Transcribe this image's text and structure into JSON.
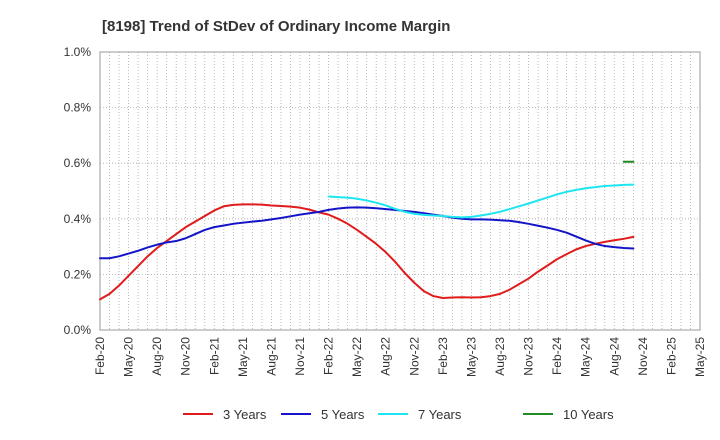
{
  "chart_data": {
    "type": "line",
    "title": "[8198]  Trend of StDev of Ordinary Income Margin",
    "xlabel": "",
    "ylabel": "",
    "x_ticks": [
      "Feb-20",
      "May-20",
      "Aug-20",
      "Nov-20",
      "Feb-21",
      "May-21",
      "Aug-21",
      "Nov-21",
      "Feb-22",
      "May-22",
      "Aug-22",
      "Nov-22",
      "Feb-23",
      "May-23",
      "Aug-23",
      "Nov-23",
      "Feb-24",
      "May-24",
      "Aug-24",
      "Nov-24",
      "Feb-25",
      "May-25"
    ],
    "y_ticks": [
      "0.0%",
      "0.2%",
      "0.4%",
      "0.6%",
      "0.8%",
      "1.0%"
    ],
    "ylim": [
      0,
      1.0
    ],
    "y_unit": "%",
    "grid": true,
    "legend_position": "bottom",
    "series": [
      {
        "name": "3 Years",
        "color": "#e01b1b",
        "points": [
          [
            "Feb-20",
            0.11
          ],
          [
            "Mar-20",
            0.13
          ],
          [
            "Apr-20",
            0.16
          ],
          [
            "May-20",
            0.195
          ],
          [
            "Jun-20",
            0.23
          ],
          [
            "Jul-20",
            0.265
          ],
          [
            "Aug-20",
            0.295
          ],
          [
            "Sep-20",
            0.32
          ],
          [
            "Oct-20",
            0.345
          ],
          [
            "Nov-20",
            0.37
          ],
          [
            "Dec-20",
            0.39
          ],
          [
            "Jan-21",
            0.41
          ],
          [
            "Feb-21",
            0.43
          ],
          [
            "Mar-21",
            0.445
          ],
          [
            "Apr-21",
            0.45
          ],
          [
            "May-21",
            0.452
          ],
          [
            "Jun-21",
            0.452
          ],
          [
            "Jul-21",
            0.451
          ],
          [
            "Aug-21",
            0.448
          ],
          [
            "Sep-21",
            0.446
          ],
          [
            "Oct-21",
            0.444
          ],
          [
            "Nov-21",
            0.44
          ],
          [
            "Dec-21",
            0.433
          ],
          [
            "Jan-22",
            0.423
          ],
          [
            "Feb-22",
            0.415
          ],
          [
            "Mar-22",
            0.4
          ],
          [
            "Apr-22",
            0.382
          ],
          [
            "May-22",
            0.36
          ],
          [
            "Jun-22",
            0.335
          ],
          [
            "Jul-22",
            0.31
          ],
          [
            "Aug-22",
            0.28
          ],
          [
            "Sep-22",
            0.245
          ],
          [
            "Oct-22",
            0.205
          ],
          [
            "Nov-22",
            0.17
          ],
          [
            "Dec-22",
            0.14
          ],
          [
            "Jan-23",
            0.122
          ],
          [
            "Feb-23",
            0.115
          ],
          [
            "Mar-23",
            0.117
          ],
          [
            "Apr-23",
            0.118
          ],
          [
            "May-23",
            0.117
          ],
          [
            "Jun-23",
            0.118
          ],
          [
            "Jul-23",
            0.122
          ],
          [
            "Aug-23",
            0.13
          ],
          [
            "Sep-23",
            0.145
          ],
          [
            "Oct-23",
            0.165
          ],
          [
            "Nov-23",
            0.185
          ],
          [
            "Dec-23",
            0.21
          ],
          [
            "Jan-24",
            0.232
          ],
          [
            "Feb-24",
            0.255
          ],
          [
            "Mar-24",
            0.273
          ],
          [
            "Apr-24",
            0.29
          ],
          [
            "May-24",
            0.302
          ],
          [
            "Jun-24",
            0.31
          ],
          [
            "Jul-24",
            0.317
          ],
          [
            "Aug-24",
            0.323
          ],
          [
            "Sep-24",
            0.328
          ],
          [
            "Oct-24",
            0.335
          ]
        ]
      },
      {
        "name": "5 Years",
        "color": "#1414c8",
        "points": [
          [
            "Feb-20",
            0.258
          ],
          [
            "Mar-20",
            0.258
          ],
          [
            "Apr-20",
            0.265
          ],
          [
            "May-20",
            0.275
          ],
          [
            "Jun-20",
            0.285
          ],
          [
            "Jul-20",
            0.297
          ],
          [
            "Aug-20",
            0.307
          ],
          [
            "Sep-20",
            0.315
          ],
          [
            "Oct-20",
            0.32
          ],
          [
            "Nov-20",
            0.33
          ],
          [
            "Dec-20",
            0.345
          ],
          [
            "Jan-21",
            0.36
          ],
          [
            "Feb-21",
            0.37
          ],
          [
            "Mar-21",
            0.376
          ],
          [
            "Apr-21",
            0.382
          ],
          [
            "May-21",
            0.386
          ],
          [
            "Jun-21",
            0.39
          ],
          [
            "Jul-21",
            0.393
          ],
          [
            "Aug-21",
            0.398
          ],
          [
            "Sep-21",
            0.403
          ],
          [
            "Oct-21",
            0.409
          ],
          [
            "Nov-21",
            0.415
          ],
          [
            "Dec-21",
            0.42
          ],
          [
            "Jan-22",
            0.425
          ],
          [
            "Feb-22",
            0.432
          ],
          [
            "Mar-22",
            0.437
          ],
          [
            "Apr-22",
            0.44
          ],
          [
            "May-22",
            0.441
          ],
          [
            "Jun-22",
            0.44
          ],
          [
            "Jul-22",
            0.438
          ],
          [
            "Aug-22",
            0.435
          ],
          [
            "Sep-22",
            0.432
          ],
          [
            "Oct-22",
            0.428
          ],
          [
            "Nov-22",
            0.425
          ],
          [
            "Dec-22",
            0.42
          ],
          [
            "Jan-23",
            0.415
          ],
          [
            "Feb-23",
            0.41
          ],
          [
            "Mar-23",
            0.404
          ],
          [
            "Apr-23",
            0.4
          ],
          [
            "May-23",
            0.398
          ],
          [
            "Jun-23",
            0.398
          ],
          [
            "Jul-23",
            0.397
          ],
          [
            "Aug-23",
            0.395
          ],
          [
            "Sep-23",
            0.393
          ],
          [
            "Oct-23",
            0.388
          ],
          [
            "Nov-23",
            0.382
          ],
          [
            "Dec-23",
            0.375
          ],
          [
            "Jan-24",
            0.368
          ],
          [
            "Feb-24",
            0.36
          ],
          [
            "Mar-24",
            0.35
          ],
          [
            "Apr-24",
            0.336
          ],
          [
            "May-24",
            0.322
          ],
          [
            "Jun-24",
            0.31
          ],
          [
            "Jul-24",
            0.302
          ],
          [
            "Aug-24",
            0.298
          ],
          [
            "Sep-24",
            0.295
          ],
          [
            "Oct-24",
            0.293
          ]
        ]
      },
      {
        "name": "7 Years",
        "color": "#1ee6f0",
        "points": [
          [
            "Feb-22",
            0.48
          ],
          [
            "Mar-22",
            0.478
          ],
          [
            "Apr-22",
            0.476
          ],
          [
            "May-22",
            0.472
          ],
          [
            "Jun-22",
            0.466
          ],
          [
            "Jul-22",
            0.458
          ],
          [
            "Aug-22",
            0.448
          ],
          [
            "Sep-22",
            0.436
          ],
          [
            "Oct-22",
            0.425
          ],
          [
            "Nov-22",
            0.418
          ],
          [
            "Dec-22",
            0.414
          ],
          [
            "Jan-23",
            0.412
          ],
          [
            "Feb-23",
            0.41
          ],
          [
            "Mar-23",
            0.407
          ],
          [
            "Apr-23",
            0.405
          ],
          [
            "May-23",
            0.407
          ],
          [
            "Jun-23",
            0.412
          ],
          [
            "Jul-23",
            0.418
          ],
          [
            "Aug-23",
            0.425
          ],
          [
            "Sep-23",
            0.435
          ],
          [
            "Oct-23",
            0.445
          ],
          [
            "Nov-23",
            0.455
          ],
          [
            "Dec-23",
            0.466
          ],
          [
            "Jan-24",
            0.477
          ],
          [
            "Feb-24",
            0.488
          ],
          [
            "Mar-24",
            0.497
          ],
          [
            "Apr-24",
            0.504
          ],
          [
            "May-24",
            0.51
          ],
          [
            "Jun-24",
            0.514
          ],
          [
            "Jul-24",
            0.518
          ],
          [
            "Aug-24",
            0.52
          ],
          [
            "Sep-24",
            0.522
          ],
          [
            "Oct-24",
            0.523
          ]
        ]
      },
      {
        "name": "10 Years",
        "color": "#228b22",
        "points": [
          [
            "Sep-24",
            0.605
          ],
          [
            "Oct-24",
            0.605
          ]
        ]
      }
    ]
  }
}
